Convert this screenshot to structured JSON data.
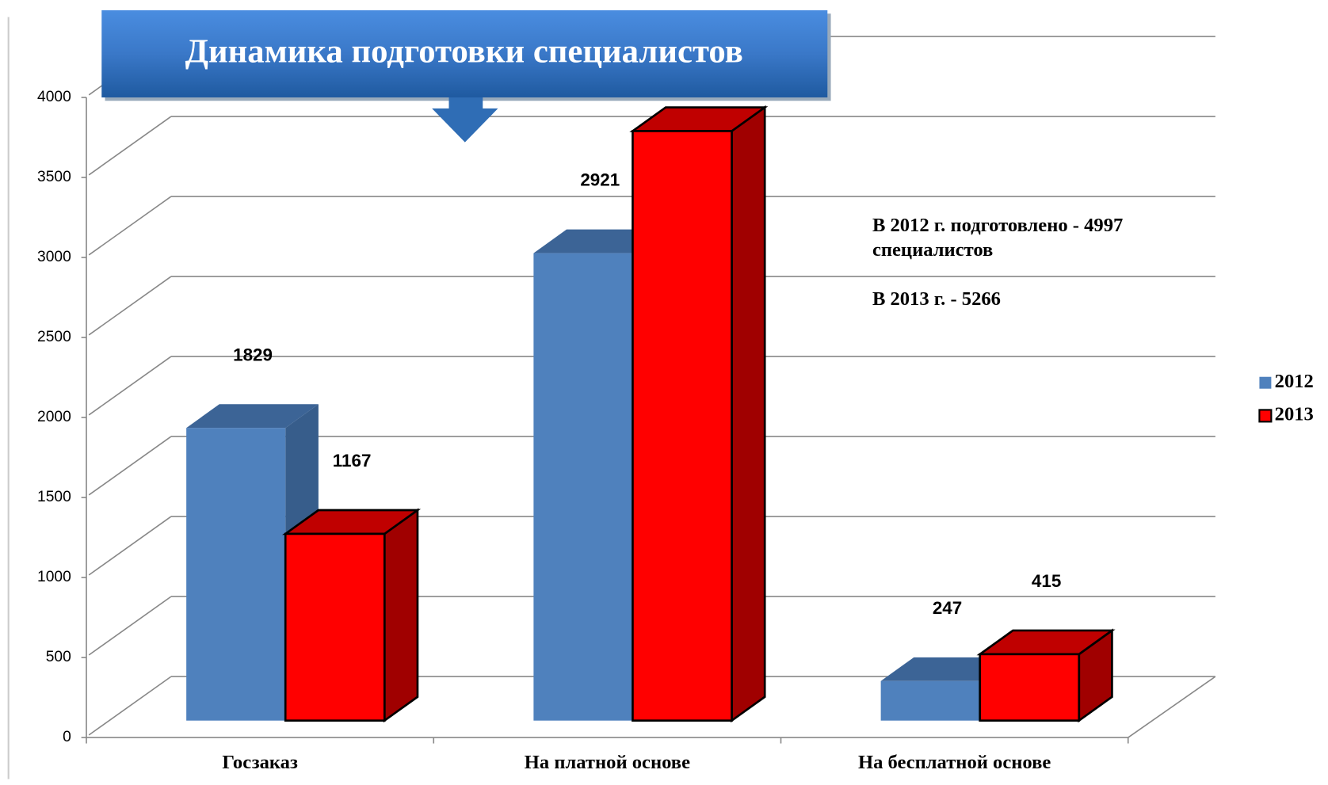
{
  "chart_data": {
    "type": "bar3d",
    "title": "Динамика  подготовки специалистов",
    "categories": [
      "Госзаказ",
      "На платной  основе",
      "На бесплатной  основе"
    ],
    "series": [
      {
        "name": "2012",
        "color": "#4f81bd",
        "values": [
          1829,
          2921,
          247
        ]
      },
      {
        "name": "2013",
        "color": "#ff0000",
        "values": [
          1167,
          3684,
          415
        ]
      }
    ],
    "ylim": [
      0,
      4000
    ],
    "yticks": [
      0,
      500,
      1000,
      1500,
      2000,
      2500,
      3000,
      3500,
      4000
    ],
    "grid": true,
    "legend": "right",
    "annotations": [
      "В 2012 г. подготовлено  - 4997",
      "специалистов",
      "В 2013 г. -  5266"
    ]
  }
}
